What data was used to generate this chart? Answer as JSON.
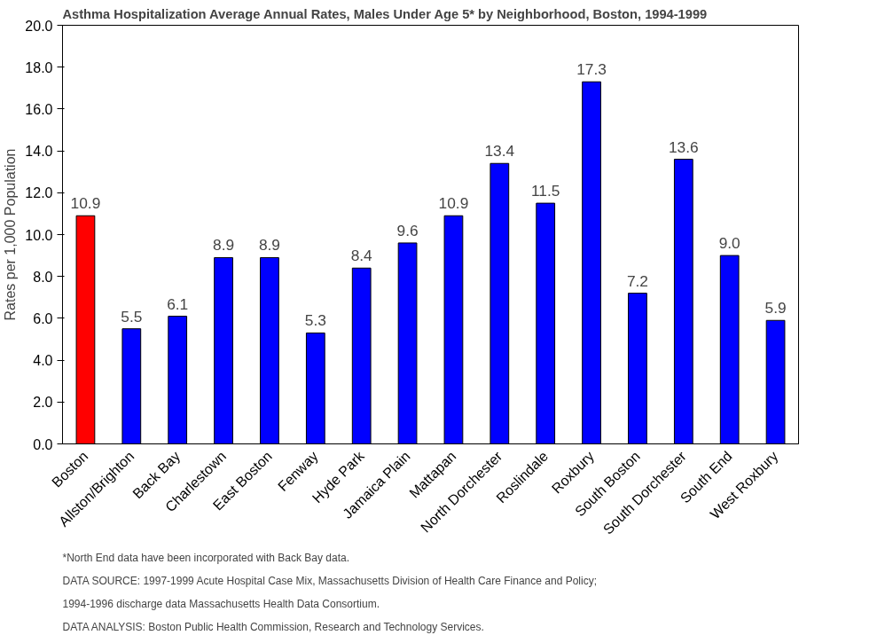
{
  "chart_data": {
    "type": "bar",
    "title": "Asthma Hospitalization Average Annual Rates, Males Under Age 5* by Neighborhood, Boston, 1994-1999",
    "ylabel": "Rates per 1,000 Population",
    "categories": [
      "Boston",
      "Allston/Brighton",
      "Back Bay",
      "Charlestown",
      "East Boston",
      "Fenway",
      "Hyde Park",
      "Jamaica Plain",
      "Mattapan",
      "North Dorchester",
      "Roslindale",
      "Roxbury",
      "South Boston",
      "South Dorchester",
      "South End",
      "West Roxbury"
    ],
    "values": [
      10.9,
      5.5,
      6.1,
      8.9,
      8.9,
      5.3,
      8.4,
      9.6,
      10.9,
      13.4,
      11.5,
      17.3,
      7.2,
      13.6,
      9.0,
      5.9
    ],
    "colors": [
      "#ff0000",
      "#0000ff",
      "#0000ff",
      "#0000ff",
      "#0000ff",
      "#0000ff",
      "#0000ff",
      "#0000ff",
      "#0000ff",
      "#0000ff",
      "#0000ff",
      "#0000ff",
      "#0000ff",
      "#0000ff",
      "#0000ff",
      "#0000ff"
    ],
    "ylim": [
      0,
      20
    ],
    "yticks": [
      {
        "value": 0,
        "label": "0.0"
      },
      {
        "value": 2,
        "label": "2.0"
      },
      {
        "value": 4,
        "label": "4.0"
      },
      {
        "value": 6,
        "label": "6.0"
      },
      {
        "value": 8,
        "label": "8.0"
      },
      {
        "value": 10,
        "label": "10.0"
      },
      {
        "value": 12,
        "label": "12.0"
      },
      {
        "value": 14,
        "label": "14.0"
      },
      {
        "value": 16,
        "label": "16.0"
      },
      {
        "value": 18,
        "label": "18.0"
      },
      {
        "value": 20,
        "label": "20.0"
      }
    ],
    "value_labels": [
      "10.9",
      "5.5",
      "6.1",
      "8.9",
      "8.9",
      "5.3",
      "8.4",
      "9.6",
      "10.9",
      "13.4",
      "11.5",
      "17.3",
      "7.2",
      "13.6",
      "9.0",
      "5.9"
    ],
    "grid": false,
    "annotations": [
      "*North End data have been incorporated with Back Bay data.",
      "DATA SOURCE:  1997-1999 Acute Hospital Case Mix, Massachusetts Division of Health Care Finance and Policy;",
      "1994-1996 discharge data Massachusetts Health Data Consortium.",
      "DATA ANALYSIS:  Boston Public Health Commission, Research and Technology Services."
    ]
  }
}
